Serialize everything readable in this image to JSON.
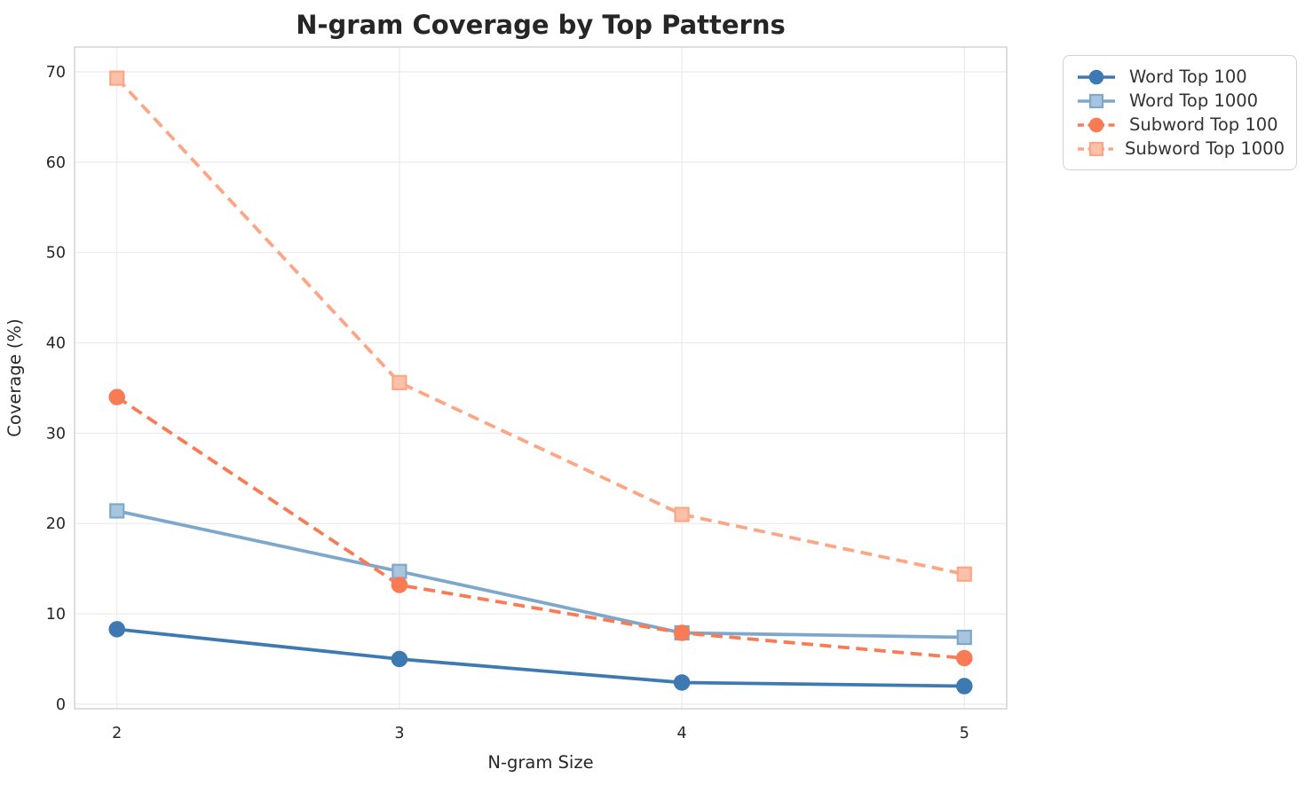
{
  "chart_data": {
    "type": "line",
    "title": "N-gram Coverage by Top Patterns",
    "xlabel": "N-gram Size",
    "ylabel": "Coverage (%)",
    "x": [
      2,
      3,
      4,
      5
    ],
    "xtick_labels": [
      "2",
      "3",
      "4",
      "5"
    ],
    "ytick_values": [
      0,
      10,
      20,
      30,
      40,
      50,
      60,
      70
    ],
    "xlim": [
      1.85,
      5.15
    ],
    "ylim": [
      -0.5,
      72.75
    ],
    "grid": true,
    "legend_position": "outside-upper-right",
    "series": [
      {
        "name": "Word Top 100",
        "values": [
          8.3,
          5.0,
          2.4,
          2.0
        ],
        "color": "#3E7AB1",
        "marker": "circle",
        "marker_fill": "#3E7AB1",
        "dash": false
      },
      {
        "name": "Word Top 1000",
        "values": [
          21.4,
          14.7,
          7.9,
          7.4
        ],
        "color": "#7EA8CB",
        "marker": "square",
        "marker_fill": "#A9C4DD",
        "dash": false
      },
      {
        "name": "Subword Top 100",
        "values": [
          34.0,
          13.2,
          7.9,
          5.1
        ],
        "color": "#F97B55",
        "marker": "circle",
        "marker_fill": "#F97B55",
        "dash": true
      },
      {
        "name": "Subword Top 1000",
        "values": [
          69.3,
          35.6,
          21.0,
          14.4
        ],
        "color": "#FCA685",
        "marker": "square",
        "marker_fill": "#FDC0A9",
        "dash": true
      }
    ],
    "style": {
      "grid_color": "#ebebeb",
      "spine_color": "#cccccc",
      "tick_label_color": "#262626",
      "title_color": "#262626",
      "axis_label_color": "#262626"
    }
  }
}
